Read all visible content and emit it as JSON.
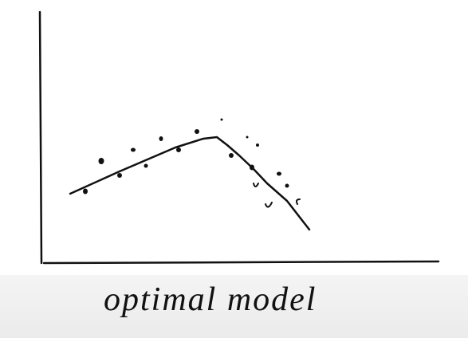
{
  "caption": "optimal model"
}
